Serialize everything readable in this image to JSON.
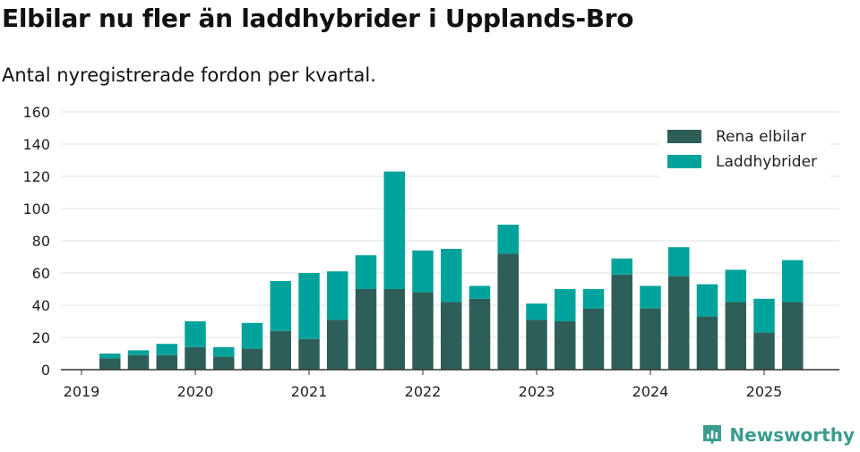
{
  "title": "Elbilar nu fler än laddhybrider i Upplands-Bro",
  "subtitle": "Antal nyregistrerade fordon per kvartal.",
  "brand": {
    "name": "Newsworthy"
  },
  "colors": {
    "rena_elbilar": "#2e5e58",
    "laddhybrider": "#00a39b",
    "brand": "#3a9c8f"
  },
  "chart_data": {
    "type": "bar",
    "stacked": true,
    "categories": [
      "2019 Q2",
      "2019 Q3",
      "2019 Q4",
      "2020 Q1",
      "2020 Q2",
      "2020 Q3",
      "2020 Q4",
      "2021 Q1",
      "2021 Q2",
      "2021 Q3",
      "2021 Q4",
      "2022 Q1",
      "2022 Q2",
      "2022 Q3",
      "2022 Q4",
      "2023 Q1",
      "2023 Q2",
      "2023 Q3",
      "2023 Q4",
      "2024 Q1",
      "2024 Q2",
      "2024 Q3",
      "2024 Q4",
      "2025 Q1",
      "2025 Q2"
    ],
    "series": [
      {
        "name": "Rena elbilar",
        "values": [
          7,
          9,
          9,
          14,
          8,
          13,
          24,
          19,
          31,
          50,
          50,
          48,
          42,
          44,
          72,
          31,
          30,
          38,
          59,
          38,
          58,
          33,
          42,
          23,
          42
        ]
      },
      {
        "name": "Laddhybrider",
        "values": [
          3,
          3,
          7,
          16,
          6,
          16,
          31,
          41,
          30,
          21,
          73,
          26,
          33,
          8,
          18,
          10,
          20,
          12,
          10,
          14,
          18,
          20,
          20,
          21,
          26
        ]
      }
    ],
    "x_tick_labels": [
      "2019",
      "2020",
      "2021",
      "2022",
      "2023",
      "2024",
      "2025"
    ],
    "y_ticks": [
      0,
      20,
      40,
      60,
      80,
      100,
      120,
      140,
      160
    ],
    "ylim": [
      0,
      160
    ],
    "grid": true,
    "legend_position": "top-right"
  }
}
